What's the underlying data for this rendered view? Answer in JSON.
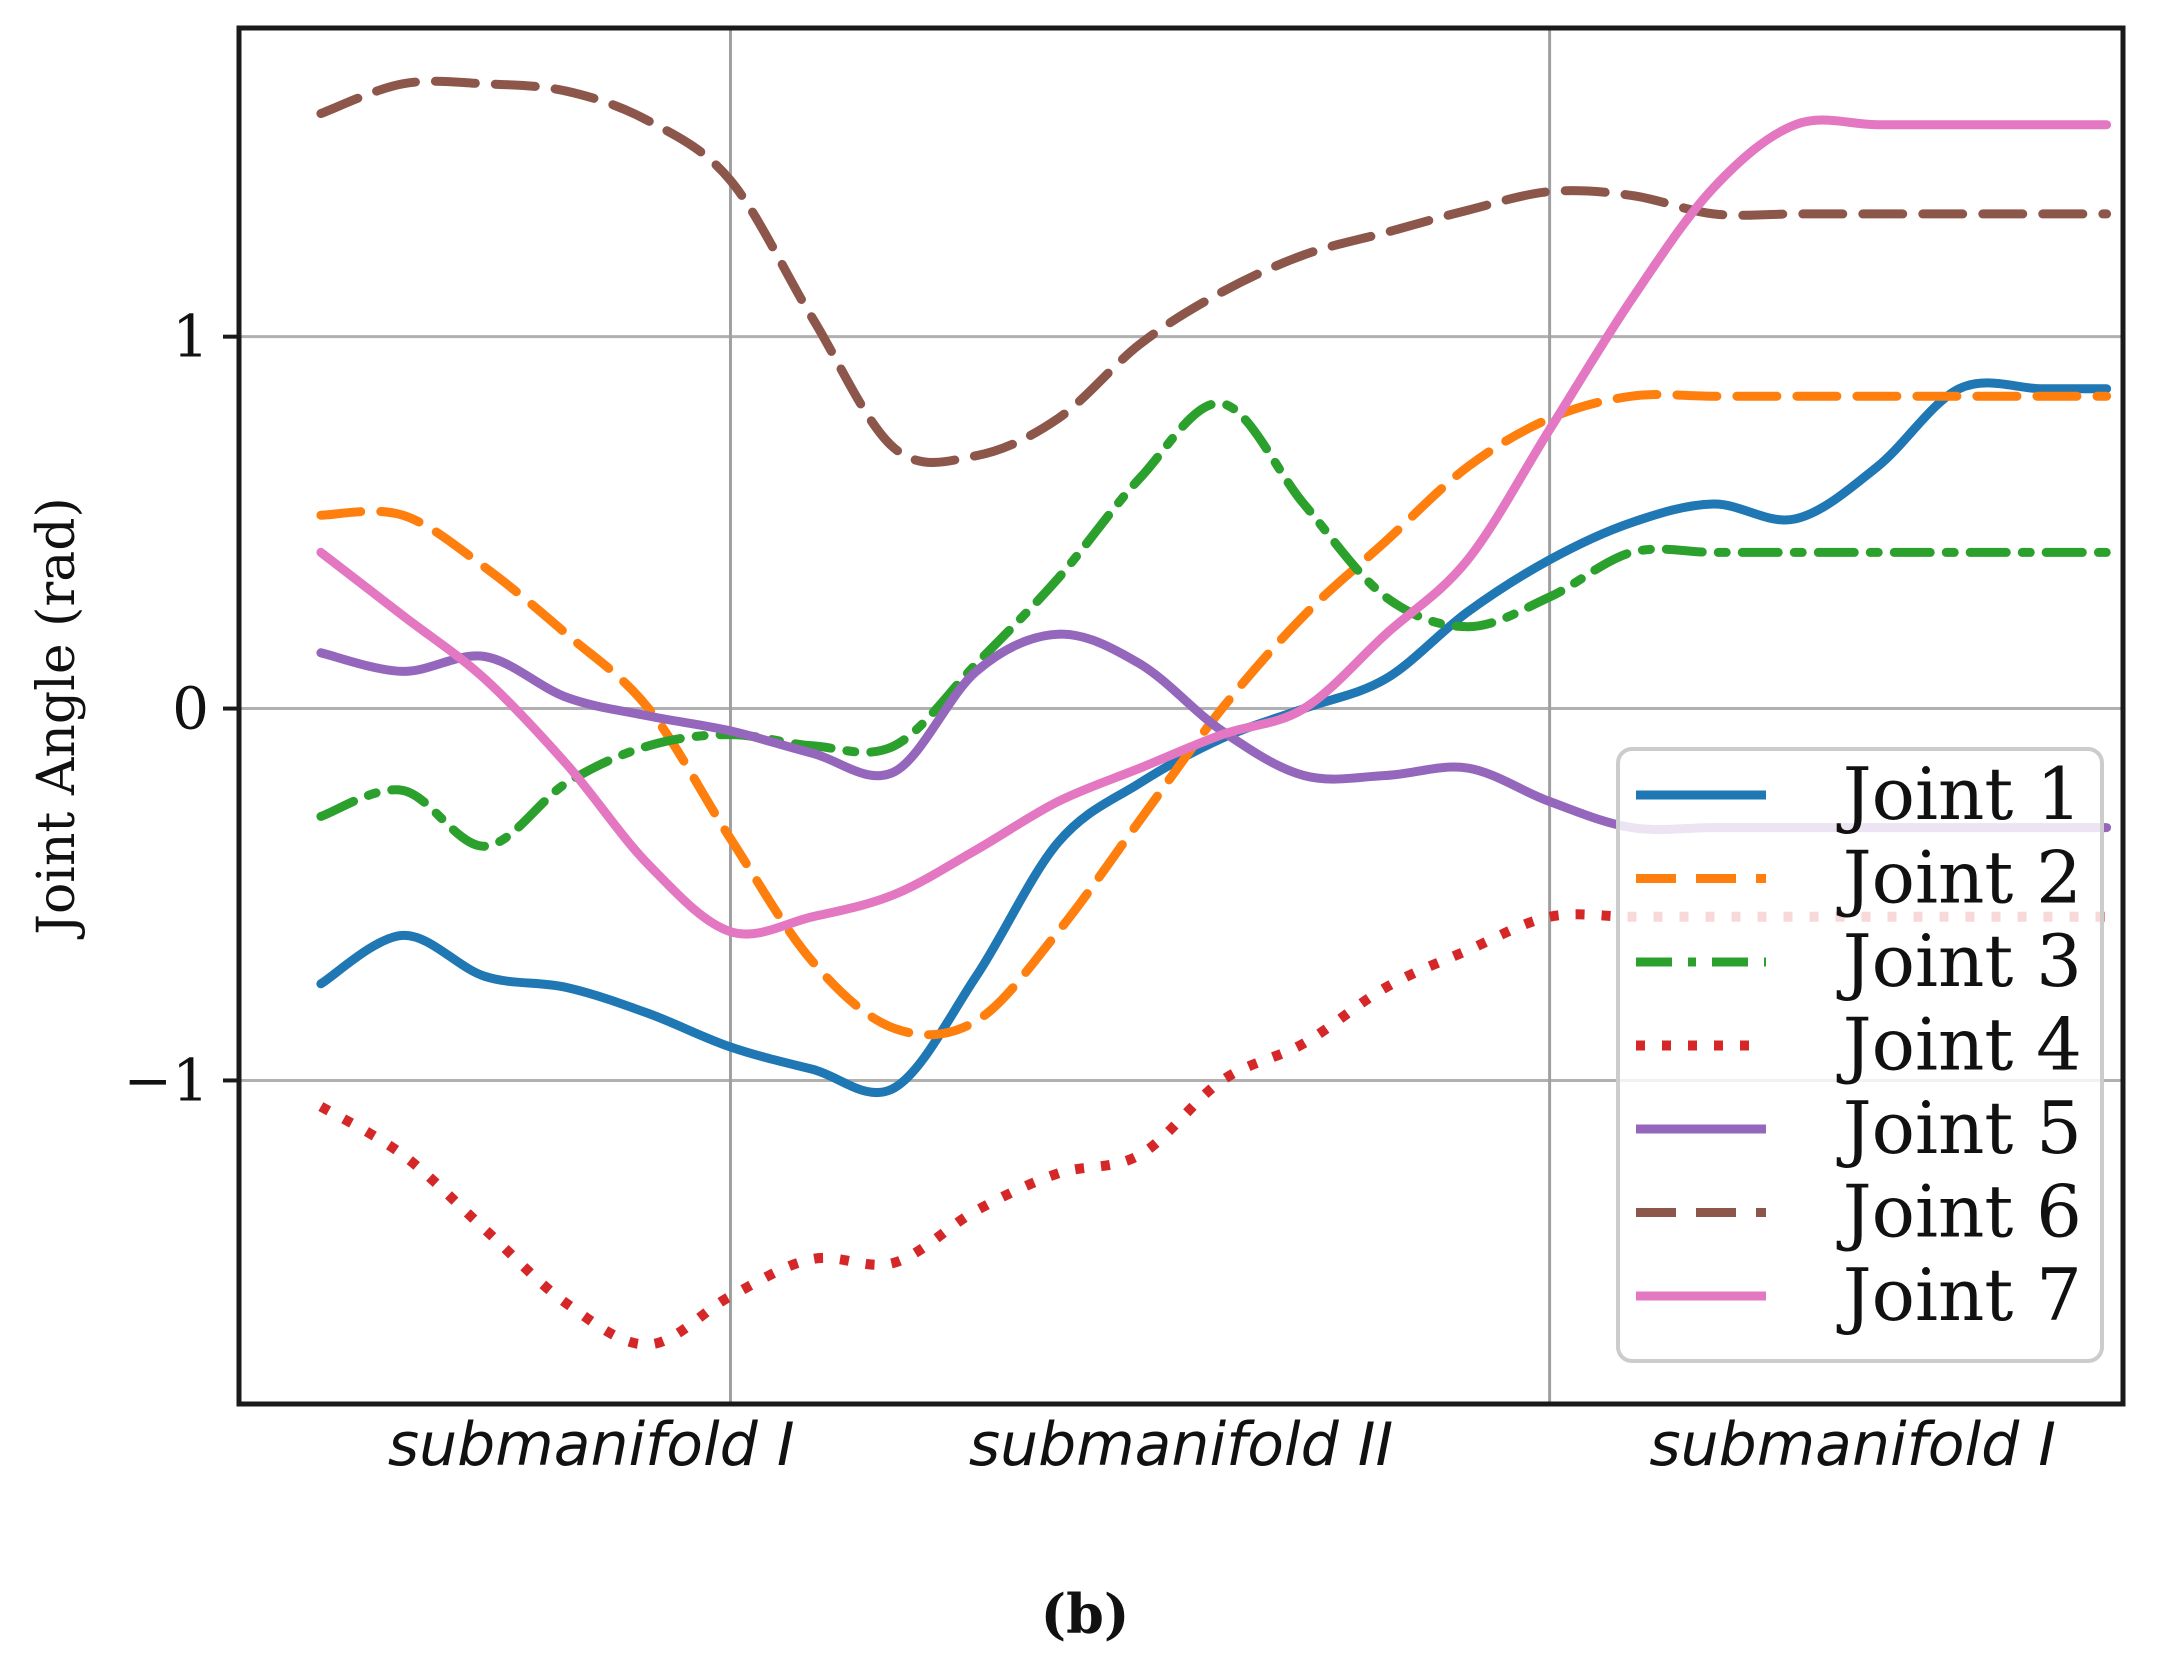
{
  "chart_data": {
    "type": "line",
    "caption": "(b)",
    "xlabel": "",
    "ylabel": "Joint Angle (rad)",
    "xlim": [
      -0.1,
      2.2
    ],
    "ylim": [
      -1.87,
      1.83
    ],
    "yticks": [
      {
        "value": -1,
        "label": "−1"
      },
      {
        "value": 0,
        "label": "0"
      },
      {
        "value": 1,
        "label": "1"
      }
    ],
    "x_divider_values": [
      0.5,
      1.5
    ],
    "segment_labels": [
      {
        "x": 0.33,
        "label": "submanifold I"
      },
      {
        "x": 1.05,
        "label": "submanifold II"
      },
      {
        "x": 1.87,
        "label": "submanifold I"
      }
    ],
    "grid": true,
    "legend_position": "lower-right",
    "x": [
      0.0,
      0.1,
      0.2,
      0.3,
      0.4,
      0.5,
      0.6,
      0.7,
      0.8,
      0.9,
      1.0,
      1.1,
      1.2,
      1.3,
      1.4,
      1.5,
      1.6,
      1.7,
      1.8,
      1.9,
      2.0,
      2.1,
      2.18
    ],
    "series": [
      {
        "name": "Joint 1",
        "color": "#1f77b4",
        "dash": "solid",
        "values": [
          -0.74,
          -0.61,
          -0.72,
          -0.75,
          -0.82,
          -0.91,
          -0.97,
          -1.02,
          -0.72,
          -0.36,
          -0.2,
          -0.08,
          0.0,
          0.08,
          0.26,
          0.4,
          0.5,
          0.55,
          0.51,
          0.65,
          0.86,
          0.86,
          0.86
        ]
      },
      {
        "name": "Joint 2",
        "color": "#ff7f0e",
        "dash": "dashed",
        "values": [
          0.52,
          0.52,
          0.38,
          0.2,
          0.0,
          -0.35,
          -0.68,
          -0.86,
          -0.84,
          -0.6,
          -0.3,
          0.0,
          0.25,
          0.45,
          0.65,
          0.78,
          0.84,
          0.84,
          0.84,
          0.84,
          0.84,
          0.84,
          0.84
        ]
      },
      {
        "name": "Joint 3",
        "color": "#2ca02c",
        "dash": "dashdot",
        "values": [
          -0.29,
          -0.22,
          -0.37,
          -0.2,
          -0.1,
          -0.07,
          -0.1,
          -0.1,
          0.12,
          0.35,
          0.62,
          0.82,
          0.55,
          0.3,
          0.22,
          0.3,
          0.42,
          0.42,
          0.42,
          0.42,
          0.42,
          0.42,
          0.42
        ]
      },
      {
        "name": "Joint 4",
        "color": "#d62728",
        "dash": "dotted",
        "values": [
          -1.07,
          -1.2,
          -1.4,
          -1.6,
          -1.71,
          -1.58,
          -1.48,
          -1.49,
          -1.35,
          -1.25,
          -1.2,
          -1.0,
          -0.9,
          -0.75,
          -0.65,
          -0.56,
          -0.56,
          -0.56,
          -0.56,
          -0.56,
          -0.56,
          -0.56,
          -0.56
        ]
      },
      {
        "name": "Joint 5",
        "color": "#9467bd",
        "dash": "solid",
        "values": [
          0.15,
          0.1,
          0.14,
          0.03,
          -0.02,
          -0.06,
          -0.12,
          -0.17,
          0.1,
          0.2,
          0.12,
          -0.06,
          -0.18,
          -0.18,
          -0.16,
          -0.25,
          -0.32,
          -0.32,
          -0.32,
          -0.32,
          -0.32,
          -0.32,
          -0.32
        ]
      },
      {
        "name": "Joint 6",
        "color": "#8c564b",
        "dash": "dashed",
        "values": [
          1.6,
          1.68,
          1.68,
          1.66,
          1.58,
          1.42,
          1.05,
          0.7,
          0.68,
          0.78,
          0.98,
          1.12,
          1.22,
          1.28,
          1.34,
          1.39,
          1.38,
          1.33,
          1.33,
          1.33,
          1.33,
          1.33,
          1.33
        ]
      },
      {
        "name": "Joint 7",
        "color": "#e377c2",
        "dash": "solid",
        "values": [
          0.42,
          0.25,
          0.08,
          -0.15,
          -0.42,
          -0.6,
          -0.56,
          -0.5,
          -0.38,
          -0.25,
          -0.16,
          -0.07,
          0.0,
          0.2,
          0.4,
          0.75,
          1.1,
          1.4,
          1.57,
          1.57,
          1.57,
          1.57,
          1.57
        ]
      }
    ]
  }
}
